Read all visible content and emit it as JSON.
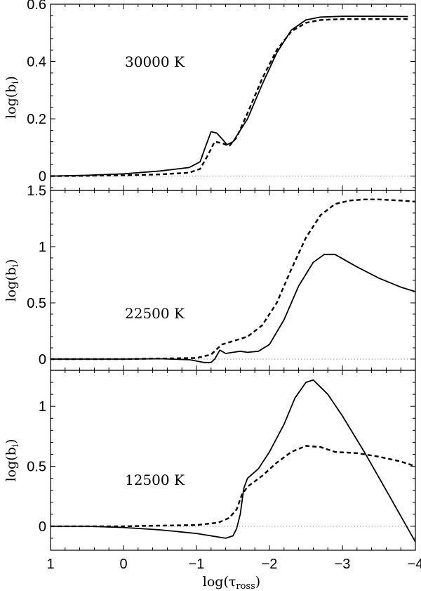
{
  "chart_data": {
    "type": "line",
    "shared_x": {
      "label": "log(τ",
      "label_sub": "ross",
      "label_close": ")",
      "range": [
        1,
        -4
      ],
      "ticks": [
        1,
        0,
        -1,
        -2,
        -3,
        -4
      ],
      "tick_labels": [
        "1",
        "0",
        "−1",
        "−2",
        "−3",
        "−4"
      ]
    },
    "panels": [
      {
        "annotation": "30000 K",
        "ylabel": "log(b",
        "ylabel_sub": "i",
        "ylabel_close": ")",
        "ylim": [
          -0.05,
          0.6
        ],
        "yticks": [
          0,
          0.2,
          0.4,
          0.6
        ],
        "ytick_labels": [
          "0",
          "0.2",
          "0.4",
          "0.6"
        ],
        "reference_line": 0,
        "series": [
          {
            "style": "solid",
            "x": [
              1,
              0.5,
              0,
              -0.5,
              -0.9,
              -1.05,
              -1.12,
              -1.2,
              -1.28,
              -1.35,
              -1.42,
              -1.5,
              -1.7,
              -1.9,
              -2.1,
              -2.3,
              -2.5,
              -2.7,
              -3.0,
              -3.5,
              -3.9
            ],
            "y": [
              0,
              0.003,
              0.008,
              0.018,
              0.03,
              0.05,
              0.1,
              0.155,
              0.15,
              0.13,
              0.11,
              0.12,
              0.2,
              0.32,
              0.43,
              0.51,
              0.545,
              0.555,
              0.558,
              0.558,
              0.557
            ]
          },
          {
            "style": "dashed",
            "x": [
              1,
              0.5,
              0,
              -0.5,
              -0.9,
              -1.05,
              -1.15,
              -1.25,
              -1.35,
              -1.45,
              -1.55,
              -1.7,
              -1.9,
              -2.1,
              -2.3,
              -2.5,
              -2.7,
              -3.0,
              -3.5,
              -3.9
            ],
            "y": [
              0,
              0.001,
              0.003,
              0.006,
              0.012,
              0.025,
              0.07,
              0.12,
              0.115,
              0.105,
              0.135,
              0.22,
              0.34,
              0.44,
              0.505,
              0.535,
              0.545,
              0.548,
              0.548,
              0.548
            ]
          }
        ]
      },
      {
        "annotation": "22500 K",
        "ylabel": "log(b",
        "ylabel_sub": "i",
        "ylabel_close": ")",
        "ylim": [
          -0.1,
          1.5
        ],
        "yticks": [
          0,
          0.5,
          1,
          1.5
        ],
        "ytick_labels": [
          "0",
          "0.5",
          "1",
          "1.5"
        ],
        "reference_line": 0,
        "series": [
          {
            "style": "solid",
            "x": [
              1,
              0.5,
              0,
              -0.5,
              -0.9,
              -1.1,
              -1.2,
              -1.25,
              -1.32,
              -1.4,
              -1.5,
              -1.6,
              -1.7,
              -1.85,
              -2.0,
              -2.2,
              -2.4,
              -2.6,
              -2.75,
              -2.9,
              -3.2,
              -3.5,
              -3.8,
              -4.0
            ],
            "y": [
              0,
              0,
              0,
              0.003,
              -0.005,
              -0.03,
              -0.03,
              0.0,
              0.08,
              0.05,
              0.06,
              0.07,
              0.06,
              0.07,
              0.13,
              0.35,
              0.65,
              0.86,
              0.93,
              0.93,
              0.82,
              0.72,
              0.64,
              0.6
            ]
          },
          {
            "style": "dashed",
            "x": [
              1,
              0.5,
              0,
              -0.5,
              -1.0,
              -1.2,
              -1.28,
              -1.35,
              -1.5,
              -1.7,
              -1.9,
              -2.1,
              -2.3,
              -2.5,
              -2.7,
              -2.9,
              -3.1,
              -3.3,
              -3.5,
              -3.8,
              -4.0
            ],
            "y": [
              0,
              0,
              0,
              0.005,
              0.01,
              0.04,
              0.09,
              0.13,
              0.16,
              0.2,
              0.3,
              0.5,
              0.8,
              1.08,
              1.28,
              1.38,
              1.41,
              1.42,
              1.42,
              1.41,
              1.4
            ]
          }
        ]
      },
      {
        "annotation": "12500 K",
        "ylabel": "log(b",
        "ylabel_sub": "i",
        "ylabel_close": ")",
        "ylim": [
          -0.2,
          1.3
        ],
        "yticks": [
          0,
          0.5,
          1
        ],
        "ytick_labels": [
          "0",
          "0.5",
          "1"
        ],
        "reference_line": 0,
        "series": [
          {
            "style": "solid",
            "x": [
              1,
              0.5,
              0,
              -0.5,
              -1.0,
              -1.2,
              -1.4,
              -1.5,
              -1.55,
              -1.6,
              -1.65,
              -1.7,
              -1.85,
              -2.0,
              -2.2,
              -2.35,
              -2.5,
              -2.6,
              -2.8,
              -3.0,
              -3.3,
              -3.6,
              -4.0
            ],
            "y": [
              0,
              0,
              -0.01,
              -0.03,
              -0.06,
              -0.08,
              -0.1,
              -0.08,
              -0.02,
              0.1,
              0.32,
              0.4,
              0.48,
              0.62,
              0.85,
              1.07,
              1.2,
              1.22,
              1.1,
              0.92,
              0.62,
              0.3,
              -0.13
            ]
          },
          {
            "style": "dashed",
            "x": [
              1,
              0.5,
              0,
              -0.5,
              -1.0,
              -1.3,
              -1.45,
              -1.55,
              -1.62,
              -1.7,
              -1.9,
              -2.1,
              -2.3,
              -2.5,
              -2.7,
              -2.9,
              -3.2,
              -3.5,
              -3.8,
              -4.0
            ],
            "y": [
              0,
              0,
              0,
              0.005,
              0.01,
              0.03,
              0.07,
              0.14,
              0.26,
              0.33,
              0.42,
              0.53,
              0.62,
              0.67,
              0.66,
              0.62,
              0.61,
              0.58,
              0.54,
              0.5
            ]
          }
        ]
      }
    ]
  }
}
